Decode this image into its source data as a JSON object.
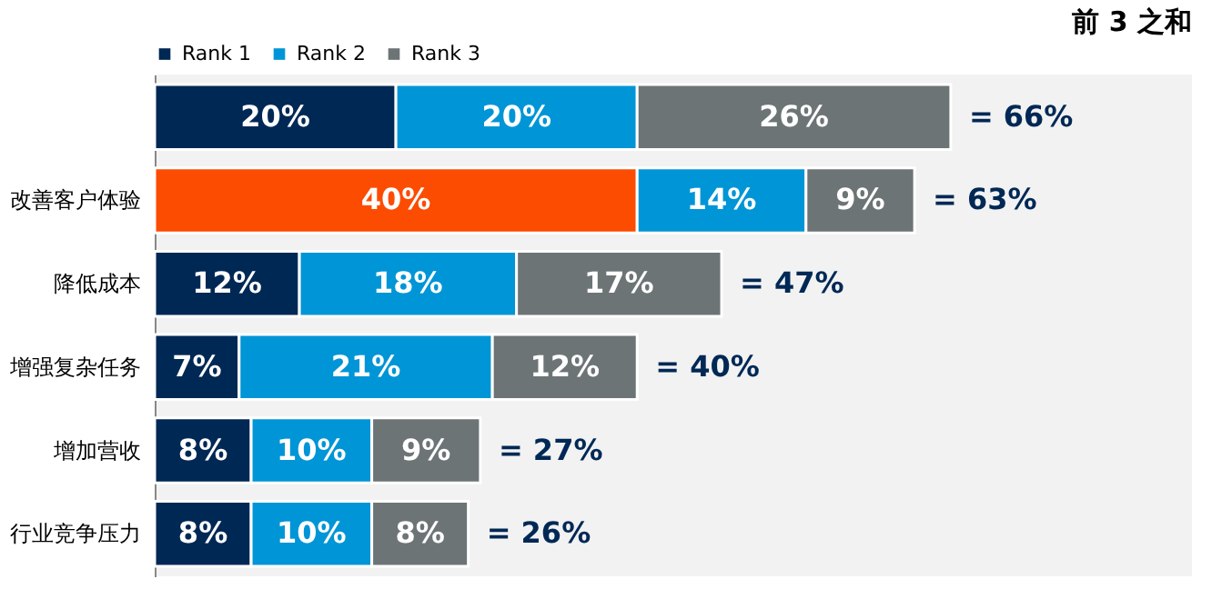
{
  "chart_data": {
    "type": "bar",
    "orientation": "horizontal",
    "stacked": true,
    "annotations": [
      "前 3 之和"
    ],
    "categories": [
      null,
      "改善客户体验",
      "降低成本",
      "增强复杂任务",
      "增加营收",
      "行业竞争压力"
    ],
    "series": [
      {
        "name": "Rank 1",
        "color": "#002855",
        "colors": [
          "#002855",
          "#fc4c02",
          "#002855",
          "#002855",
          "#002855",
          "#002855"
        ],
        "values": [
          20,
          40,
          12,
          7,
          8,
          8
        ],
        "value_labels": [
          "20%",
          "40%",
          "12%",
          "7%",
          "8%",
          "8%"
        ]
      },
      {
        "name": "Rank 2",
        "color": "#0095d6",
        "values": [
          20,
          14,
          18,
          21,
          10,
          10
        ],
        "value_labels": [
          "20%",
          "14%",
          "18%",
          "21%",
          "10%",
          "10%"
        ]
      },
      {
        "name": "Rank 3",
        "color": "#6d7476",
        "values": [
          26,
          9,
          17,
          12,
          9,
          8
        ],
        "value_labels": [
          "26%",
          "9%",
          "17%",
          "12%",
          "9%",
          "8%"
        ]
      }
    ],
    "totals": [
      "= 66%",
      "= 63%",
      "= 47%",
      "= 40%",
      "= 27%",
      "= 26%"
    ],
    "xlim": [
      0,
      86
    ],
    "tick_labels": "y",
    "legend": "top left"
  }
}
